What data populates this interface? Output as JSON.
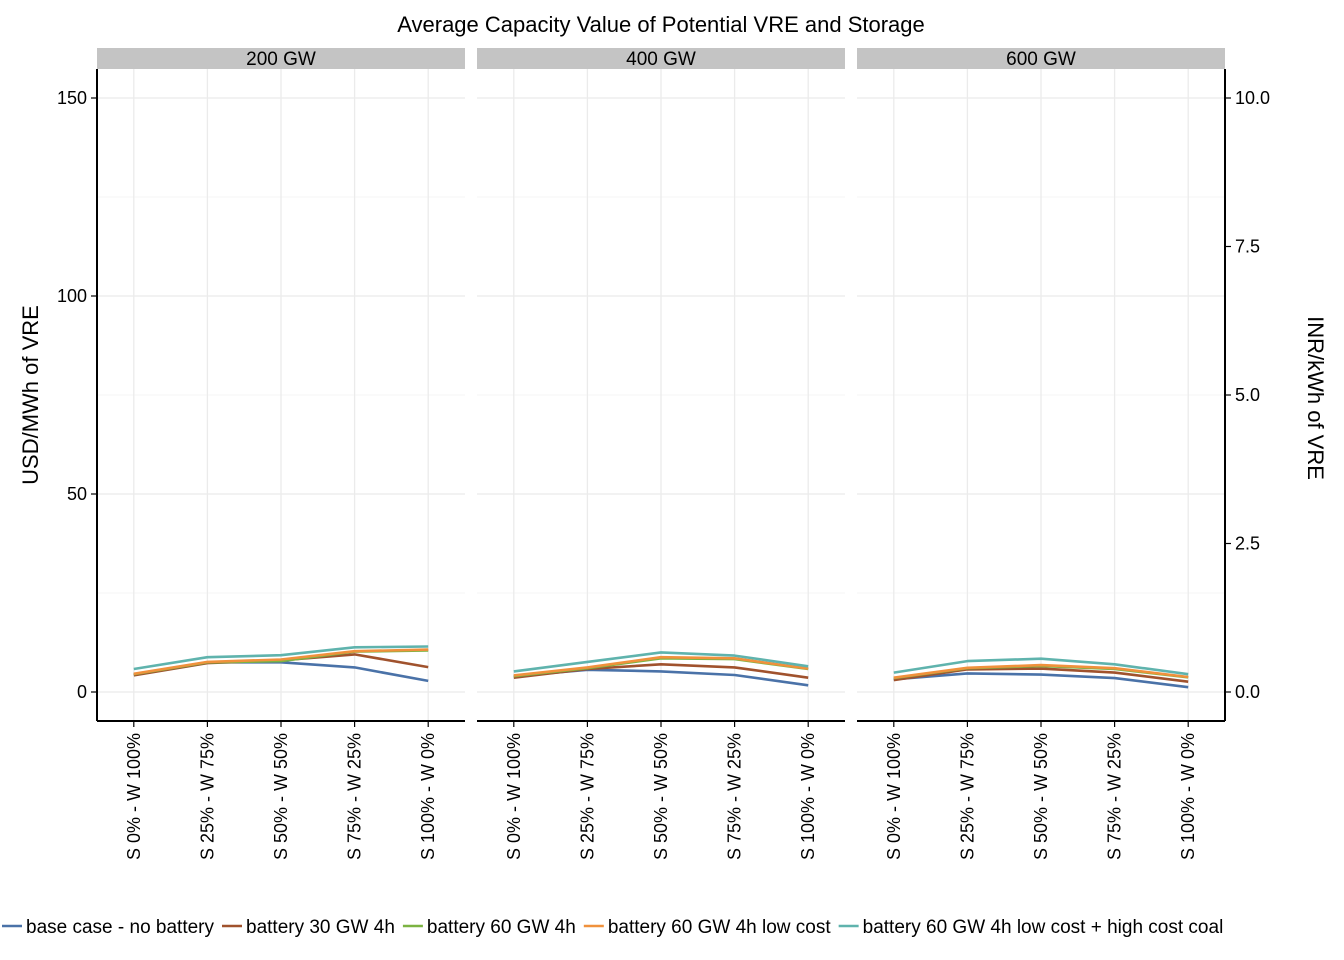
{
  "chart_data": {
    "type": "line",
    "title": "Average Capacity Value of Potential VRE and Storage",
    "ylabel": "USD/MWh of VRE",
    "ylabel_right": "INR/kWh of VRE",
    "ylim": [
      -7,
      157
    ],
    "yticks": [
      0,
      50,
      100,
      150
    ],
    "yticks_right": [
      "0.0",
      "2.5",
      "5.0",
      "7.5",
      "10.0"
    ],
    "yticks_right_values": [
      0,
      2.5,
      5.0,
      7.5,
      10.0
    ],
    "right_axis_usd_per_inr": 15,
    "grid": true,
    "legend_position": "bottom",
    "categories": [
      "S 0% - W 100%",
      "S 25% - W 75%",
      "S 50% - W 50%",
      "S 75% - W 25%",
      "S 100% - W 0%"
    ],
    "panels": [
      {
        "name": "200 GW",
        "series": [
          {
            "name": "base case - no battery",
            "values": [
              4.5,
              7.5,
              7.5,
              6.2,
              2.8
            ]
          },
          {
            "name": "battery 30 GW 4h",
            "values": [
              4.2,
              7.3,
              8.0,
              9.5,
              6.3
            ]
          },
          {
            "name": "battery 60 GW 4h",
            "values": [
              4.5,
              7.5,
              7.8,
              10.2,
              10.5
            ]
          },
          {
            "name": "battery 60 GW 4h low cost",
            "values": [
              4.6,
              7.6,
              8.2,
              10.3,
              10.7
            ]
          },
          {
            "name": "battery 60 GW 4h low cost + high cost coal",
            "values": [
              5.8,
              8.8,
              9.3,
              11.3,
              11.5
            ]
          }
        ]
      },
      {
        "name": "400 GW",
        "series": [
          {
            "name": "base case - no battery",
            "values": [
              4.0,
              5.6,
              5.2,
              4.3,
              1.7
            ]
          },
          {
            "name": "battery 30 GW 4h",
            "values": [
              3.6,
              5.8,
              7.0,
              6.2,
              3.6
            ]
          },
          {
            "name": "battery 60 GW 4h",
            "values": [
              4.0,
              6.0,
              8.5,
              8.3,
              5.8
            ]
          },
          {
            "name": "battery 60 GW 4h low cost",
            "values": [
              4.2,
              6.2,
              8.8,
              8.5,
              5.9
            ]
          },
          {
            "name": "battery 60 GW 4h low cost + high cost coal",
            "values": [
              5.2,
              7.6,
              10.0,
              9.2,
              6.5
            ]
          }
        ]
      },
      {
        "name": "600 GW",
        "series": [
          {
            "name": "base case - no battery",
            "values": [
              3.2,
              4.7,
              4.4,
              3.5,
              1.2
            ]
          },
          {
            "name": "battery 30 GW 4h",
            "values": [
              3.0,
              5.7,
              5.9,
              4.9,
              2.6
            ]
          },
          {
            "name": "battery 60 GW 4h",
            "values": [
              3.5,
              6.0,
              6.6,
              5.8,
              3.7
            ]
          },
          {
            "name": "battery 60 GW 4h low cost",
            "values": [
              3.6,
              6.1,
              6.8,
              6.0,
              3.8
            ]
          },
          {
            "name": "battery 60 GW 4h low cost + high cost coal",
            "values": [
              4.9,
              7.8,
              8.4,
              7.0,
              4.5
            ]
          }
        ]
      }
    ],
    "legend": [
      {
        "name": "base case - no battery",
        "color": "#4a72a8"
      },
      {
        "name": "battery 30 GW 4h",
        "color": "#a0522d"
      },
      {
        "name": "battery 60 GW 4h",
        "color": "#7cb342"
      },
      {
        "name": "battery 60 GW 4h low cost",
        "color": "#f0913c"
      },
      {
        "name": "battery 60 GW 4h low cost + high cost coal",
        "color": "#5fb3ad"
      }
    ]
  }
}
